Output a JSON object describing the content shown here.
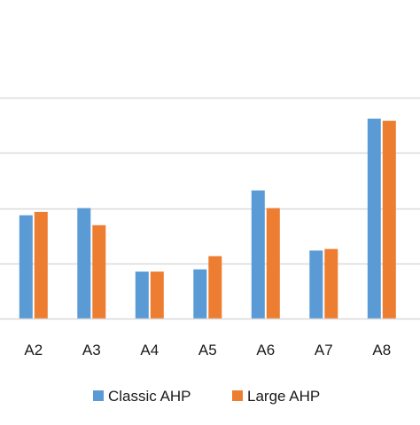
{
  "chart_data": {
    "type": "bar",
    "title": "",
    "xlabel": "",
    "ylabel": "",
    "categories": [
      "A2",
      "A3",
      "A4",
      "A5",
      "A6",
      "A7",
      "A8"
    ],
    "series": [
      {
        "name": "Classic AHP",
        "color": "#5b9bd5",
        "values": [
          0.187,
          0.2,
          0.085,
          0.089,
          0.232,
          0.123,
          0.362
        ]
      },
      {
        "name": "Large AHP",
        "color": "#ed7d31",
        "values": [
          0.193,
          0.169,
          0.085,
          0.113,
          0.2,
          0.126,
          0.358
        ]
      }
    ],
    "ylim": [
      0,
      0.4
    ],
    "gridlines": [
      0,
      0.1,
      0.2,
      0.3,
      0.4
    ],
    "grid": true,
    "legend": "bottom"
  }
}
